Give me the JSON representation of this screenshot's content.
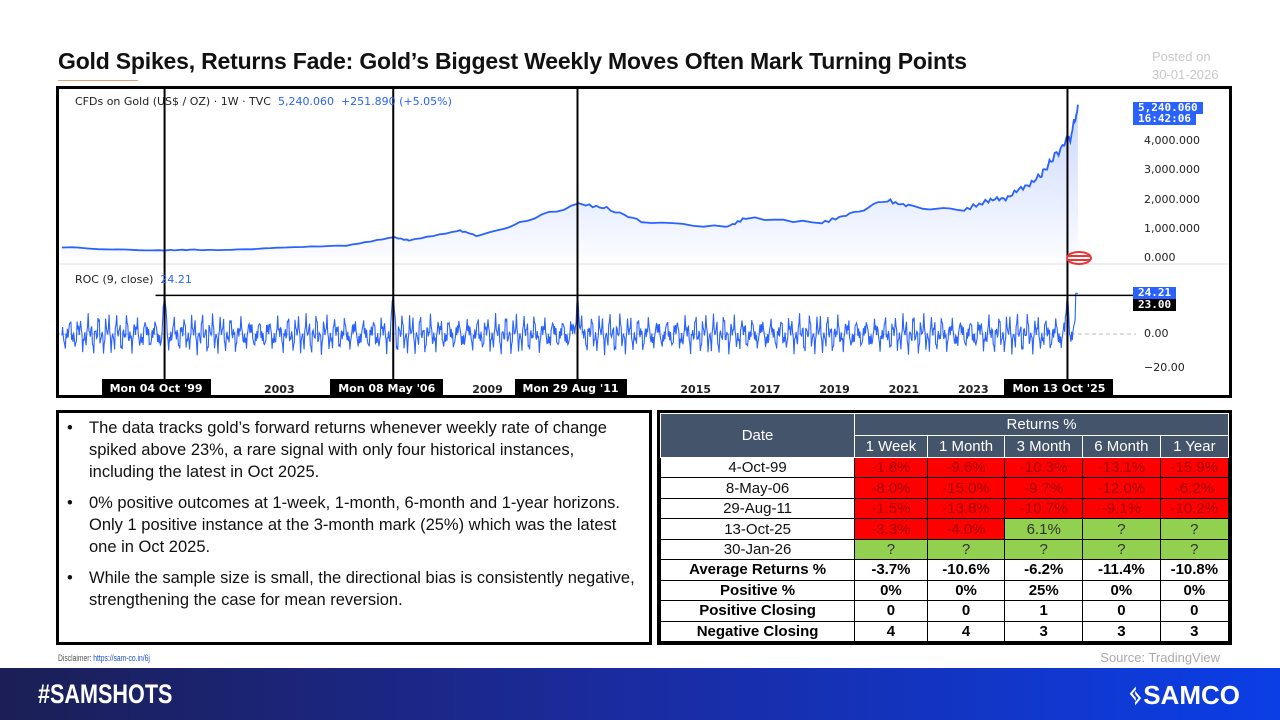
{
  "title": "Gold Spikes, Returns Fade: Gold’s Biggest Weekly Moves Often Mark Turning Points",
  "posted": {
    "label": "Posted on",
    "date": "30-01-2026"
  },
  "chart_data": {
    "type": "line",
    "price_panel": {
      "legend": "CFDs on Gold (US$ / OZ) · 1W · TVC",
      "last": "5,240.060",
      "change": "+251.890 (+5.05%)",
      "last_tag": "5,240.060",
      "time_tag": "16:42:06",
      "y_ticks": [
        "4,000.000",
        "3,000.000",
        "2,000.000",
        "1,000.000",
        "0.000"
      ],
      "y_tick_values": [
        4000,
        3000,
        2000,
        1000,
        0
      ],
      "series": [
        [
          1996.8,
          370
        ],
        [
          1998,
          300
        ],
        [
          1999.6,
          260
        ],
        [
          2000.5,
          280
        ],
        [
          2001.5,
          270
        ],
        [
          2003,
          350
        ],
        [
          2005,
          430
        ],
        [
          2006.4,
          700
        ],
        [
          2006.8,
          600
        ],
        [
          2008.2,
          950
        ],
        [
          2008.8,
          750
        ],
        [
          2010,
          1200
        ],
        [
          2011.7,
          1850
        ],
        [
          2012.5,
          1700
        ],
        [
          2013.5,
          1250
        ],
        [
          2015.9,
          1050
        ],
        [
          2016.5,
          1350
        ],
        [
          2018.7,
          1200
        ],
        [
          2019.5,
          1500
        ],
        [
          2020.6,
          2000
        ],
        [
          2021.2,
          1750
        ],
        [
          2022.8,
          1650
        ],
        [
          2023.5,
          1950
        ],
        [
          2024,
          2050
        ],
        [
          2024.5,
          2400
        ],
        [
          2025,
          2800
        ],
        [
          2025.3,
          3300
        ],
        [
          2025.75,
          4000
        ],
        [
          2025.9,
          4200
        ],
        [
          2026.08,
          5240
        ]
      ],
      "color": "#2962ff"
    },
    "roc_panel": {
      "legend": "ROC (9, close)",
      "last": "24.21",
      "last_tag": "24.21",
      "threshold_tag": "23.00",
      "threshold": 23,
      "y_ticks": [
        "0.00",
        "−20.00"
      ],
      "y_tick_values": [
        0,
        -20
      ]
    },
    "x_ticks": [
      {
        "label": "2003",
        "year": 2003
      },
      {
        "label": "2009",
        "year": 2009
      },
      {
        "label": "2015",
        "year": 2015
      },
      {
        "label": "2017",
        "year": 2017
      },
      {
        "label": "2019",
        "year": 2019
      },
      {
        "label": "2021",
        "year": 2021
      },
      {
        "label": "2023",
        "year": 2023
      }
    ],
    "events": [
      {
        "label": "Mon 04 Oct '99",
        "year": 1999.76
      },
      {
        "label": "Mon 08 May '06",
        "year": 2006.35
      },
      {
        "label": "Mon 29 Aug '11",
        "year": 2011.66
      },
      {
        "label": "Mon 13 Oct '25",
        "year": 2025.78
      }
    ]
  },
  "notes": [
    "The data tracks gold’s forward returns whenever weekly rate of change spiked above 23%, a rare signal with only four historical instances, including the latest in Oct 2025.",
    "0% positive outcomes at 1-week, 1-month, 6-month and 1-year horizons. Only 1 positive instance at the 3-month mark (25%) which was the latest one in Oct 2025.",
    "While the sample size is small, the directional bias is consistently negative, strengthening the case for mean reversion."
  ],
  "table": {
    "date_header": "Date",
    "group_header": "Returns %",
    "columns": [
      "1 Week",
      "1 Month",
      "3 Month",
      "6 Month",
      "1 Year"
    ],
    "rows": [
      {
        "label": "4-Oct-99",
        "cells": [
          [
            "-1.8%",
            "r"
          ],
          [
            "-9.6%",
            "r"
          ],
          [
            "-10.3%",
            "r"
          ],
          [
            "-13.1%",
            "r"
          ],
          [
            "-15.9%",
            "r"
          ]
        ]
      },
      {
        "label": "8-May-06",
        "cells": [
          [
            "-8.0%",
            "r"
          ],
          [
            "-15.0%",
            "r"
          ],
          [
            "-9.7%",
            "r"
          ],
          [
            "-12.0%",
            "r"
          ],
          [
            "-6.2%",
            "r"
          ]
        ]
      },
      {
        "label": "29-Aug-11",
        "cells": [
          [
            "-1.5%",
            "r"
          ],
          [
            "-13.8%",
            "r"
          ],
          [
            "-10.7%",
            "r"
          ],
          [
            "-9.1%",
            "r"
          ],
          [
            "-10.2%",
            "r"
          ]
        ]
      },
      {
        "label": "13-Oct-25",
        "cells": [
          [
            "-3.3%",
            "r"
          ],
          [
            "-4.0%",
            "r"
          ],
          [
            "6.1%",
            "g"
          ],
          [
            "?",
            "g"
          ],
          [
            "?",
            "g"
          ]
        ]
      },
      {
        "label": "30-Jan-26",
        "cells": [
          [
            "?",
            "g"
          ],
          [
            "?",
            "g"
          ],
          [
            "?",
            "g"
          ],
          [
            "?",
            "g"
          ],
          [
            "?",
            "g"
          ]
        ]
      }
    ],
    "summary": [
      {
        "label": "Average Returns %",
        "cells": [
          "-3.7%",
          "-10.6%",
          "-6.2%",
          "-11.4%",
          "-10.8%"
        ]
      },
      {
        "label": "Positive %",
        "cells": [
          "0%",
          "0%",
          "25%",
          "0%",
          "0%"
        ]
      },
      {
        "label": "Positive Closing",
        "cells": [
          "0",
          "0",
          "1",
          "0",
          "0"
        ]
      },
      {
        "label": "Negative Closing",
        "cells": [
          "4",
          "4",
          "3",
          "3",
          "3"
        ]
      }
    ],
    "colors": {
      "header": "#44546a",
      "negative": "#ff0000",
      "positive": "#92d050"
    }
  },
  "disclaimer": {
    "label": "Disclaimer:",
    "link": "https://sam-co.in/6j"
  },
  "source": "Source: TradingView",
  "footer": {
    "tagline": "#SAMSHOTS",
    "brand": "SAMCO"
  }
}
